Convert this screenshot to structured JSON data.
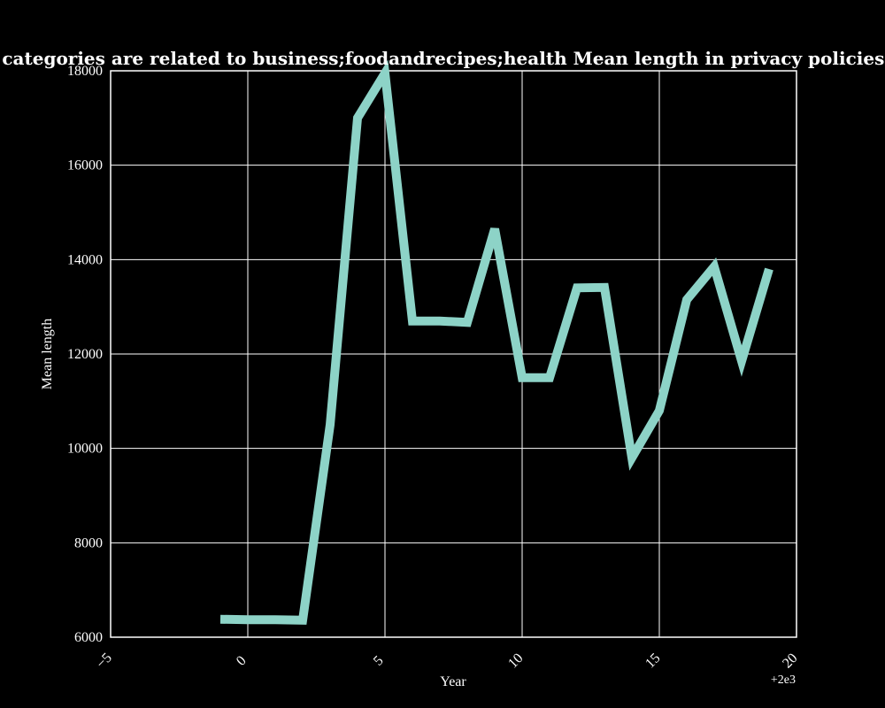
{
  "chart_data": {
    "type": "line",
    "title": "when categories are related to business;foodandrecipes;health Mean length in privacy policies by Year",
    "xlabel": "Year",
    "ylabel": "Mean length",
    "x_offset_label": "+2e3",
    "xlim": [
      -5,
      20
    ],
    "ylim": [
      6000,
      18000
    ],
    "xticks": [
      -5,
      0,
      5,
      10,
      15,
      20
    ],
    "yticks": [
      6000,
      8000,
      10000,
      12000,
      14000,
      16000,
      18000
    ],
    "grid": true,
    "line_color": "#8dd3c7",
    "background": "#000000",
    "series": [
      {
        "x": [
          1999,
          2000,
          2001,
          2002,
          2003,
          2004,
          2005,
          2006,
          2007,
          2008,
          2009,
          2010,
          2011,
          2012,
          2013,
          2014,
          2015,
          2016,
          2017,
          2018,
          2019
        ],
        "values": [
          6380,
          6370,
          6370,
          6360,
          10500,
          17000,
          17950,
          12700,
          12700,
          12670,
          14650,
          11500,
          11500,
          13400,
          13410,
          9800,
          10800,
          13150,
          13850,
          11850,
          13800
        ]
      }
    ]
  }
}
